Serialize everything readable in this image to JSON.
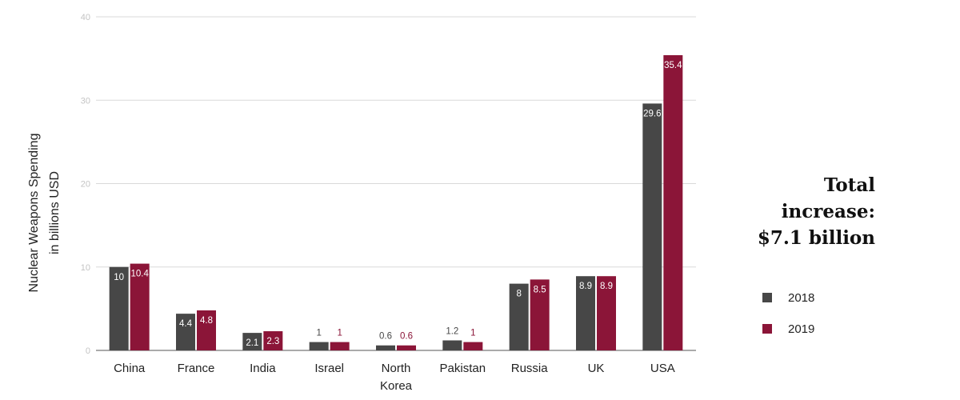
{
  "annotation": {
    "line1": "Total",
    "line2": "increase:",
    "line3": "$7.1 billion"
  },
  "chart_data": {
    "type": "bar",
    "title": "",
    "xlabel": "",
    "ylabel_line1": "Nuclear Weapons Spending",
    "ylabel_line2": "in billions USD",
    "ylim": [
      0,
      40
    ],
    "yticks": [
      "0",
      "10",
      "20",
      "30",
      "40"
    ],
    "grid": true,
    "legend_position": "right",
    "categories": [
      [
        "China"
      ],
      [
        "France"
      ],
      [
        "India"
      ],
      [
        "Israel"
      ],
      [
        "North",
        "Korea"
      ],
      [
        "Pakistan"
      ],
      [
        "Russia"
      ],
      [
        "UK"
      ],
      [
        "USA"
      ]
    ],
    "series": [
      {
        "name": "2018",
        "color": "#474747",
        "values": [
          10,
          4.4,
          2.1,
          1,
          0.6,
          1.2,
          8,
          8.9,
          29.6
        ],
        "labels": [
          "10",
          "4.4",
          "2.1",
          "1",
          "0.6",
          "1.2",
          "8",
          "8.9",
          "29.6"
        ]
      },
      {
        "name": "2019",
        "color": "#8b1538",
        "values": [
          10.4,
          4.8,
          2.3,
          1,
          0.6,
          1,
          8.5,
          8.9,
          35.4
        ],
        "labels": [
          "10.4",
          "4.8",
          "2.3",
          "1",
          "0.6",
          "1",
          "8.5",
          "8.9",
          "35.4"
        ]
      }
    ]
  }
}
